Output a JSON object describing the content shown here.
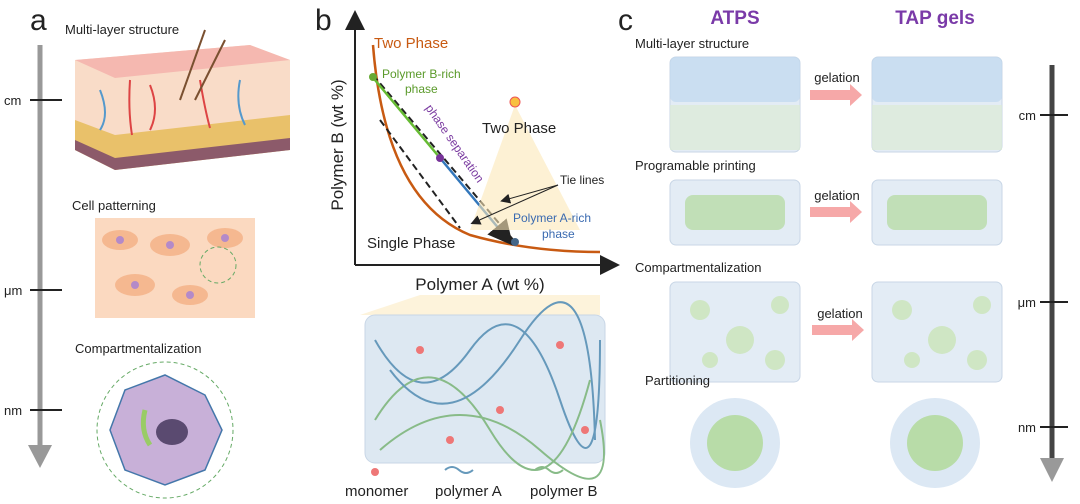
{
  "panels": {
    "a": {
      "label": "a",
      "sections": [
        "Multi-layer structure",
        "Cell patterning",
        "Compartmentalization"
      ],
      "scale": [
        "cm",
        "μm",
        "nm"
      ]
    },
    "b": {
      "label": "b",
      "two_phase_top": "Two Phase",
      "y_axis": "Polymer B (wt %)",
      "x_axis": "Polymer A (wt %)",
      "b_rich": [
        "Polymer B-rich",
        "phase"
      ],
      "separation": "phase separation",
      "two_phase_mid": "Two Phase",
      "tie_lines": "Tie lines",
      "a_rich": [
        "Polymer A-rich",
        "phase"
      ],
      "single_phase": "Single Phase",
      "legend": [
        "monomer",
        "polymer A",
        "polymer B"
      ]
    },
    "c": {
      "label": "c",
      "columns": [
        "ATPS",
        "TAP gels"
      ],
      "rows": [
        {
          "label": "Multi-layer structure",
          "arrow": "gelation"
        },
        {
          "label": "Programable printing",
          "arrow": "gelation"
        },
        {
          "label": "Compartmentalization",
          "arrow": "gelation"
        },
        {
          "label": "Partitioning"
        }
      ],
      "scale": [
        "cm",
        "μm",
        "nm"
      ]
    }
  }
}
